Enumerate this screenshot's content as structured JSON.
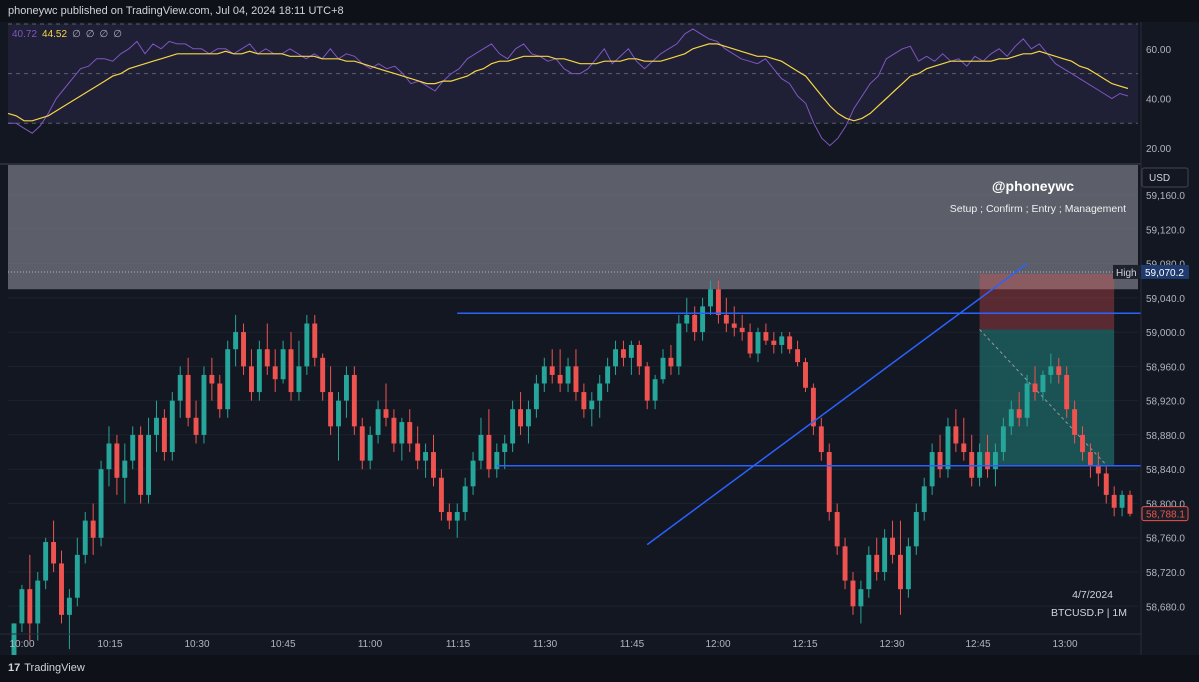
{
  "header": {
    "published_text": "phoneywc published on TradingView.com, Jul 04, 2024 18:11 UTC+8"
  },
  "footer": {
    "brand_glyph": "17",
    "brand": "TradingView"
  },
  "rsi": {
    "readout": [
      "40.72",
      "44.52",
      "∅",
      "∅",
      "∅",
      "∅"
    ],
    "readout_colors": [
      "#7e57c2",
      "#f5d547",
      "#b2b5be",
      "#b2b5be",
      "#b2b5be",
      "#b2b5be"
    ],
    "ticks": [
      {
        "v": 60,
        "label": "60.00"
      },
      {
        "v": 40,
        "label": "40.00"
      },
      {
        "v": 20,
        "label": "20.00"
      }
    ],
    "range": [
      14,
      70
    ],
    "band": [
      30,
      70
    ],
    "mid": 50,
    "rsi_values": [
      30,
      30,
      28,
      26,
      29,
      34,
      40,
      44,
      48,
      52,
      53,
      56,
      56,
      55,
      58,
      60,
      63,
      58,
      62,
      60,
      63,
      62,
      62,
      60,
      60,
      58,
      60,
      60,
      58,
      60,
      62,
      58,
      60,
      58,
      58,
      60,
      58,
      56,
      58,
      56,
      60,
      56,
      58,
      57,
      54,
      52,
      54,
      52,
      53,
      50,
      46,
      47,
      45,
      43,
      47,
      50,
      52,
      56,
      58,
      60,
      62,
      58,
      56,
      60,
      62,
      58,
      57,
      55,
      56,
      52,
      50,
      50,
      52,
      56,
      60,
      54,
      57,
      60,
      55,
      52,
      55,
      58,
      60,
      62,
      66,
      68,
      66,
      64,
      63,
      60,
      58,
      56,
      55,
      54,
      56,
      52,
      48,
      46,
      41,
      38,
      30,
      24,
      21,
      24,
      29,
      36,
      41,
      46,
      49,
      56,
      58,
      60,
      61,
      55,
      57,
      55,
      58,
      55,
      56,
      53,
      57,
      55,
      58,
      60,
      57,
      61,
      64,
      60,
      62,
      58,
      54,
      52,
      50,
      48,
      46,
      44,
      42,
      40,
      42,
      41
    ],
    "signal_values": [
      34,
      33,
      31,
      31,
      32,
      33,
      35,
      37,
      39,
      41,
      43,
      45,
      47,
      49,
      50,
      52,
      53,
      54,
      55,
      56,
      57,
      58,
      58,
      58,
      58,
      58,
      58,
      59,
      58,
      58,
      59,
      58,
      58,
      58,
      58,
      57,
      57,
      57,
      57,
      56,
      56,
      56,
      55,
      55,
      54,
      53,
      52,
      51,
      50,
      49,
      48,
      47,
      46,
      46,
      47,
      47,
      48,
      49,
      51,
      52,
      54,
      55,
      55,
      56,
      57,
      57,
      57,
      57,
      56,
      56,
      55,
      54,
      54,
      54,
      55,
      55,
      55,
      56,
      56,
      55,
      55,
      55,
      56,
      57,
      58,
      60,
      61,
      62,
      62,
      61,
      60,
      59,
      58,
      57,
      57,
      56,
      55,
      53,
      51,
      49,
      45,
      41,
      37,
      34,
      32,
      31,
      32,
      34,
      37,
      40,
      43,
      46,
      49,
      50,
      52,
      53,
      54,
      55,
      55,
      55,
      55,
      55,
      55,
      56,
      56,
      57,
      58,
      58,
      59,
      58,
      57,
      56,
      55,
      53,
      52,
      50,
      48,
      46,
      45,
      44
    ]
  },
  "chart_data": {
    "type": "candlestick",
    "symbol": "BTCUSD.P",
    "interval": "1M",
    "date_label": "4/7/2024",
    "watermark_title": "@phoneywc",
    "watermark_subtitle": "Setup ; Confirm ; Entry ; Management",
    "currency": "USD",
    "ylim": [
      58650,
      59195
    ],
    "y_ticks": [
      {
        "v": 59160,
        "label": "59,160.0"
      },
      {
        "v": 59120,
        "label": "59,120.0"
      },
      {
        "v": 59080,
        "label": "59,080.0"
      },
      {
        "v": 59040,
        "label": "59,040.0"
      },
      {
        "v": 59000,
        "label": "59,000.0"
      },
      {
        "v": 58960,
        "label": "58,960.0"
      },
      {
        "v": 58920,
        "label": "58,920.0"
      },
      {
        "v": 58880,
        "label": "58,880.0"
      },
      {
        "v": 58840,
        "label": "58,840.0"
      },
      {
        "v": 58800,
        "label": "58,800.0"
      },
      {
        "v": 58760,
        "label": "58,760.0"
      },
      {
        "v": 58720,
        "label": "58,720.0"
      },
      {
        "v": 58680,
        "label": "58,680.0"
      }
    ],
    "x_ticks": [
      "10:00",
      "10:15",
      "10:30",
      "10:45",
      "11:00",
      "11:15",
      "11:30",
      "11:45",
      "12:00",
      "12:15",
      "12:30",
      "12:45",
      "13:00"
    ],
    "high_marker": {
      "label": "High",
      "value": 59070.2,
      "text": "59,070.2"
    },
    "last_price": {
      "value": 58788.1,
      "text": "58,788.1"
    },
    "supply_zone": [
      59050,
      59195
    ],
    "levels": [
      {
        "value": 59022,
        "from_index": 56,
        "to_index": 143
      },
      {
        "value": 58844,
        "from_index": 61,
        "to_index": 163
      }
    ],
    "trendline": {
      "from": {
        "index": 80,
        "value": 58752
      },
      "to": {
        "index": 128,
        "value": 59080
      }
    },
    "position": {
      "from_index": 122,
      "to_index": 139,
      "entry": 59003,
      "stop": 59068,
      "target": 58845
    },
    "candles": [
      [
        58600,
        58660,
        58590,
        58660
      ],
      [
        58660,
        58705,
        58650,
        58700
      ],
      [
        58700,
        58740,
        58640,
        58660
      ],
      [
        58660,
        58720,
        58640,
        58710
      ],
      [
        58710,
        58760,
        58700,
        58755
      ],
      [
        58755,
        58780,
        58720,
        58730
      ],
      [
        58730,
        58745,
        58660,
        58670
      ],
      [
        58670,
        58700,
        58630,
        58690
      ],
      [
        58690,
        58760,
        58680,
        58740
      ],
      [
        58740,
        58790,
        58730,
        58780
      ],
      [
        58780,
        58800,
        58740,
        58760
      ],
      [
        58760,
        58850,
        58750,
        58840
      ],
      [
        58840,
        58890,
        58820,
        58870
      ],
      [
        58870,
        58880,
        58810,
        58830
      ],
      [
        58830,
        58870,
        58800,
        58850
      ],
      [
        58850,
        58890,
        58840,
        58880
      ],
      [
        58880,
        58890,
        58800,
        58810
      ],
      [
        58810,
        58900,
        58800,
        58880
      ],
      [
        58880,
        58920,
        58860,
        58900
      ],
      [
        58900,
        58910,
        58850,
        58860
      ],
      [
        58860,
        58930,
        58850,
        58920
      ],
      [
        58920,
        58960,
        58900,
        58950
      ],
      [
        58950,
        58970,
        58890,
        58900
      ],
      [
        58900,
        58920,
        58870,
        58880
      ],
      [
        58880,
        58960,
        58870,
        58950
      ],
      [
        58950,
        58970,
        58920,
        58940
      ],
      [
        58940,
        58950,
        58900,
        58910
      ],
      [
        58910,
        58990,
        58900,
        58980
      ],
      [
        58980,
        59020,
        58960,
        59000
      ],
      [
        59000,
        59010,
        58950,
        58960
      ],
      [
        58960,
        58980,
        58920,
        58930
      ],
      [
        58930,
        58990,
        58920,
        58980
      ],
      [
        58980,
        59010,
        58950,
        58960
      ],
      [
        58960,
        58980,
        58930,
        58945
      ],
      [
        58945,
        58990,
        58940,
        58980
      ],
      [
        58980,
        59000,
        58920,
        58930
      ],
      [
        58930,
        58990,
        58920,
        58960
      ],
      [
        58960,
        59020,
        58950,
        59010
      ],
      [
        59010,
        59020,
        58960,
        58970
      ],
      [
        58970,
        58975,
        58920,
        58930
      ],
      [
        58930,
        58960,
        58880,
        58890
      ],
      [
        58890,
        58930,
        58850,
        58920
      ],
      [
        58920,
        58960,
        58900,
        58950
      ],
      [
        58950,
        58960,
        58880,
        58890
      ],
      [
        58890,
        58900,
        58840,
        58850
      ],
      [
        58850,
        58890,
        58840,
        58880
      ],
      [
        58880,
        58920,
        58870,
        58910
      ],
      [
        58910,
        58940,
        58890,
        58900
      ],
      [
        58900,
        58910,
        58860,
        58870
      ],
      [
        58870,
        58900,
        58850,
        58895
      ],
      [
        58895,
        58910,
        58860,
        58870
      ],
      [
        58870,
        58890,
        58840,
        58850
      ],
      [
        58850,
        58870,
        58830,
        58860
      ],
      [
        58860,
        58880,
        58820,
        58830
      ],
      [
        58830,
        58840,
        58780,
        58790
      ],
      [
        58790,
        58800,
        58770,
        58780
      ],
      [
        58780,
        58800,
        58760,
        58790
      ],
      [
        58790,
        58830,
        58780,
        58820
      ],
      [
        58820,
        58860,
        58810,
        58850
      ],
      [
        58850,
        58900,
        58840,
        58880
      ],
      [
        58880,
        58910,
        58830,
        58840
      ],
      [
        58840,
        58870,
        58830,
        58860
      ],
      [
        58860,
        58880,
        58840,
        58870
      ],
      [
        58870,
        58920,
        58860,
        58910
      ],
      [
        58910,
        58930,
        58880,
        58890
      ],
      [
        58890,
        58920,
        58870,
        58910
      ],
      [
        58910,
        58950,
        58900,
        58940
      ],
      [
        58940,
        58970,
        58930,
        58960
      ],
      [
        58960,
        58980,
        58940,
        58950
      ],
      [
        58950,
        58980,
        58930,
        58940
      ],
      [
        58940,
        58970,
        58930,
        58960
      ],
      [
        58960,
        58980,
        58920,
        58930
      ],
      [
        58930,
        58940,
        58900,
        58910
      ],
      [
        58910,
        58930,
        58890,
        58920
      ],
      [
        58920,
        58950,
        58900,
        58940
      ],
      [
        58940,
        58970,
        58930,
        58960
      ],
      [
        58960,
        58990,
        58950,
        58980
      ],
      [
        58980,
        58990,
        58960,
        58970
      ],
      [
        58970,
        58990,
        58950,
        58985
      ],
      [
        58985,
        58990,
        58950,
        58960
      ],
      [
        58960,
        58965,
        58910,
        58920
      ],
      [
        58920,
        58950,
        58910,
        58945
      ],
      [
        58945,
        58980,
        58940,
        58970
      ],
      [
        58970,
        58985,
        58950,
        58960
      ],
      [
        58960,
        59020,
        58950,
        59010
      ],
      [
        59010,
        59040,
        59000,
        59020
      ],
      [
        59020,
        59030,
        58990,
        59000
      ],
      [
        59000,
        59040,
        58990,
        59030
      ],
      [
        59030,
        59060,
        59020,
        59050
      ],
      [
        59050,
        59060,
        59010,
        59020
      ],
      [
        59020,
        59040,
        59000,
        59010
      ],
      [
        59010,
        59030,
        58995,
        59005
      ],
      [
        59005,
        59020,
        58990,
        59000
      ],
      [
        59000,
        59010,
        58970,
        58975
      ],
      [
        58975,
        59005,
        58965,
        59000
      ],
      [
        59000,
        59010,
        58985,
        58990
      ],
      [
        58990,
        59000,
        58975,
        58985
      ],
      [
        58985,
        59000,
        58975,
        58995
      ],
      [
        58995,
        59000,
        58975,
        58980
      ],
      [
        58980,
        58990,
        58960,
        58965
      ],
      [
        58965,
        58970,
        58930,
        58935
      ],
      [
        58935,
        58940,
        58880,
        58890
      ],
      [
        58890,
        58900,
        58850,
        58860
      ],
      [
        58860,
        58870,
        58780,
        58790
      ],
      [
        58790,
        58800,
        58740,
        58750
      ],
      [
        58750,
        58760,
        58700,
        58710
      ],
      [
        58710,
        58720,
        58670,
        58680
      ],
      [
        58680,
        58710,
        58660,
        58700
      ],
      [
        58700,
        58750,
        58690,
        58740
      ],
      [
        58740,
        58760,
        58710,
        58720
      ],
      [
        58720,
        58770,
        58710,
        58760
      ],
      [
        58760,
        58780,
        58730,
        58740
      ],
      [
        58740,
        58780,
        58670,
        58700
      ],
      [
        58700,
        58760,
        58690,
        58750
      ],
      [
        58750,
        58800,
        58740,
        58790
      ],
      [
        58790,
        58830,
        58780,
        58820
      ],
      [
        58820,
        58870,
        58810,
        58860
      ],
      [
        58860,
        58880,
        58830,
        58840
      ],
      [
        58840,
        58900,
        58830,
        58890
      ],
      [
        58890,
        58910,
        58860,
        58870
      ],
      [
        58870,
        58900,
        58850,
        58860
      ],
      [
        58860,
        58880,
        58820,
        58830
      ],
      [
        58830,
        58870,
        58820,
        58860
      ],
      [
        58860,
        58880,
        58830,
        58840
      ],
      [
        58840,
        58870,
        58820,
        58860
      ],
      [
        58860,
        58900,
        58850,
        58890
      ],
      [
        58890,
        58920,
        58880,
        58910
      ],
      [
        58910,
        58930,
        58890,
        58900
      ],
      [
        58900,
        58950,
        58890,
        58940
      ],
      [
        58940,
        58960,
        58920,
        58930
      ],
      [
        58930,
        58955,
        58920,
        58950
      ],
      [
        58950,
        58975,
        58940,
        58960
      ],
      [
        58960,
        58970,
        58940,
        58950
      ],
      [
        58950,
        58960,
        58900,
        58910
      ],
      [
        58910,
        58920,
        58870,
        58880
      ],
      [
        58880,
        58890,
        58850,
        58860
      ],
      [
        58860,
        58870,
        58830,
        58845
      ],
      [
        58845,
        58860,
        58820,
        58835
      ],
      [
        58835,
        58845,
        58800,
        58810
      ],
      [
        58810,
        58820,
        58785,
        58795
      ],
      [
        58795,
        58815,
        58785,
        58810
      ],
      [
        58810,
        58815,
        58785,
        58788
      ]
    ]
  },
  "colors": {
    "up": "#26a69a",
    "down": "#ef5350",
    "level": "#2962ff",
    "rsi": "#7e57c2",
    "signal": "#f5d547"
  }
}
